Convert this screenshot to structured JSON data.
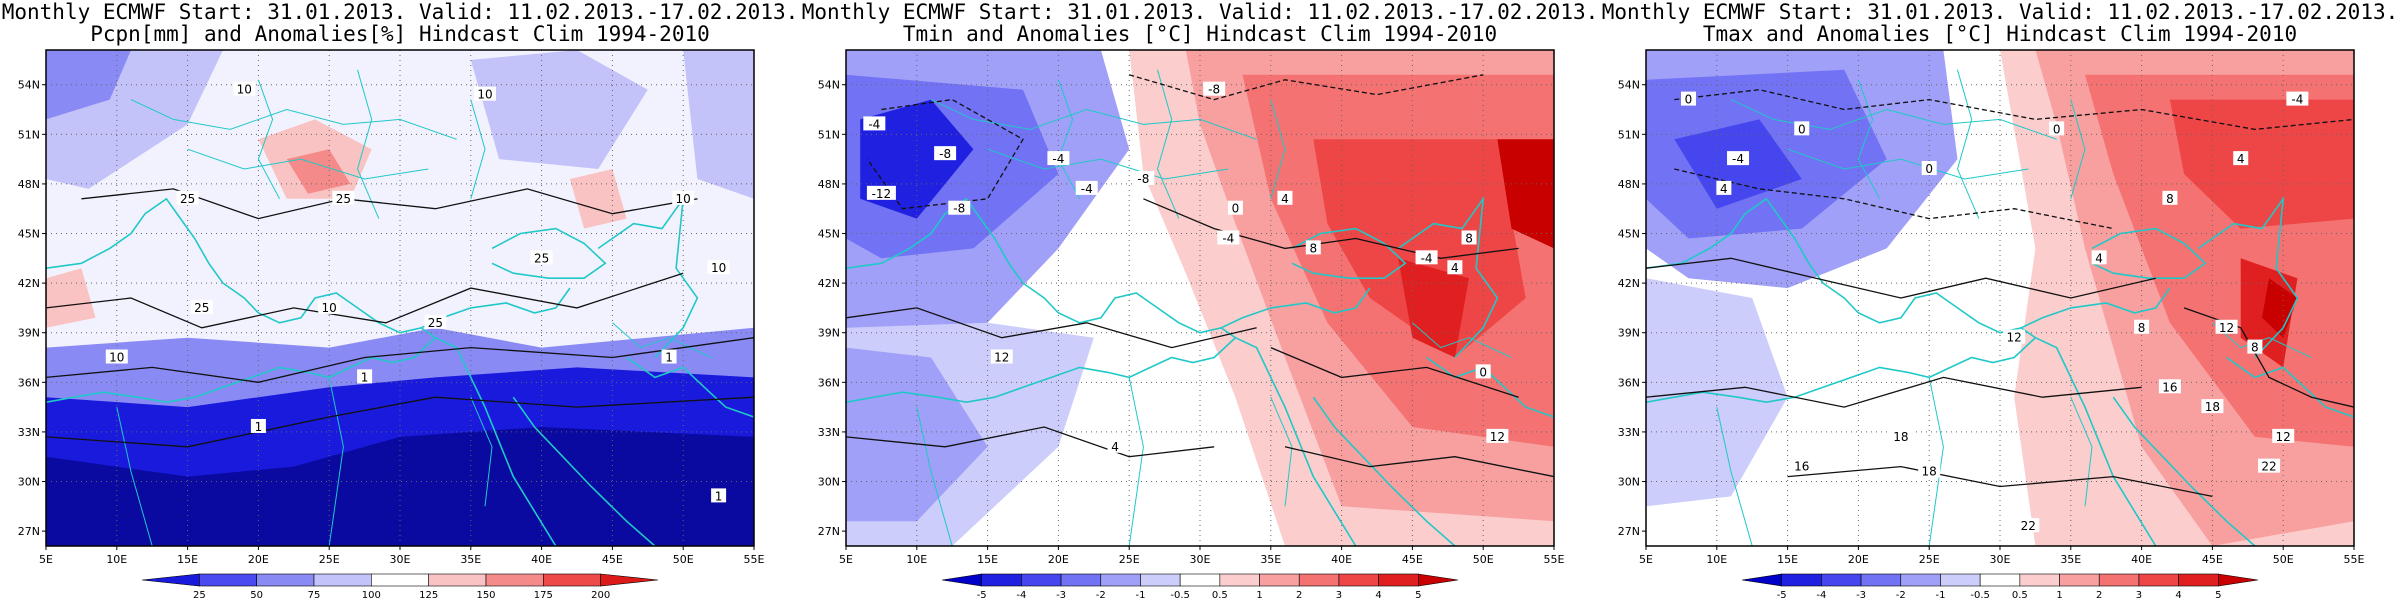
{
  "panels": [
    {
      "id": "pcpn",
      "title_line1": "Monthly ECMWF Start: 31.01.2013. Valid: 11.02.2013.-17.02.2013.",
      "title_line2": "Pcpn[mm] and Anomalies[%] Hindcast Clim 1994-2010",
      "colorbar_labels": [
        "25",
        "50",
        "75",
        "100",
        "125",
        "150",
        "175",
        "200"
      ],
      "colorbar_colors": [
        "#1a1adc",
        "#4a4af0",
        "#8a8af5",
        "#c3c3fa",
        "#ffffff",
        "#fac3c3",
        "#f58a8a",
        "#ef4a4a",
        "#dc1a1a"
      ],
      "contour_labels": [
        "10",
        "10",
        "25",
        "25",
        "10",
        "25",
        "10",
        "10",
        "25",
        "1",
        "1",
        "1",
        "1",
        "10",
        "25"
      ]
    },
    {
      "id": "tmin",
      "title_line1": "Monthly ECMWF Start: 31.01.2013. Valid: 11.02.2013.-17.02.2013.",
      "title_line2": "Tmin and Anomalies [°C] Hindcast Clim 1994-2010",
      "colorbar_labels": [
        "-5",
        "-4",
        "-3",
        "-2",
        "-1",
        "-0.5",
        "0.5",
        "1",
        "2",
        "3",
        "4",
        "5"
      ],
      "colorbar_colors": [
        "#0000c8",
        "#2020e0",
        "#4646ee",
        "#7272f4",
        "#a0a0f8",
        "#cdcdfb",
        "#ffffff",
        "#fbcdcd",
        "#f8a0a0",
        "#f47272",
        "#ee4646",
        "#e02020",
        "#c80000"
      ],
      "contour_labels": [
        "-4",
        "-8",
        "-12",
        "-8",
        "-4",
        "-8",
        "-4",
        "-8",
        "-4",
        "0",
        "4",
        "8",
        "-4",
        "4",
        "12",
        "4",
        "0",
        "8",
        "12"
      ]
    },
    {
      "id": "tmax",
      "title_line1": "Monthly ECMWF Start: 31.01.2013. Valid: 11.02.2013.-17.02.2013.",
      "title_line2": "Tmax and Anomalies [°C] Hindcast Clim 1994-2010",
      "colorbar_labels": [
        "-5",
        "-4",
        "-3",
        "-2",
        "-1",
        "-0.5",
        "0.5",
        "1",
        "2",
        "3",
        "4",
        "5"
      ],
      "colorbar_colors": [
        "#0000c8",
        "#2020e0",
        "#4646ee",
        "#7272f4",
        "#a0a0f8",
        "#cdcdfb",
        "#ffffff",
        "#fbcdcd",
        "#f8a0a0",
        "#f47272",
        "#ee4646",
        "#e02020",
        "#c80000"
      ],
      "contour_labels": [
        "0",
        "-4",
        "0",
        "4",
        "0",
        "-4",
        "4",
        "0",
        "8",
        "12",
        "4",
        "8",
        "12",
        "16",
        "18",
        "16",
        "18",
        "22",
        "12",
        "18",
        "22",
        "8"
      ]
    }
  ],
  "lat_labels": [
    "54N",
    "51N",
    "48N",
    "45N",
    "42N",
    "39N",
    "36N",
    "33N",
    "30N",
    "27N"
  ],
  "lon_labels": [
    "5E",
    "10E",
    "15E",
    "20E",
    "25E",
    "30E",
    "35E",
    "40E",
    "45E",
    "50E",
    "55E"
  ]
}
